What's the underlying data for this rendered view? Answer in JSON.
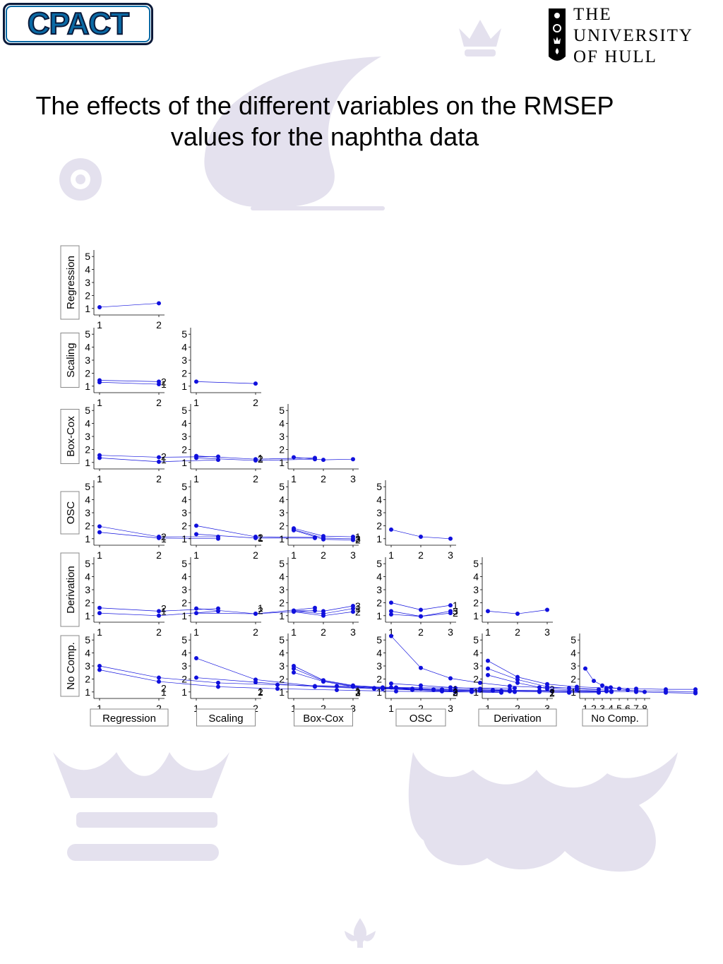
{
  "header": {
    "logo_left_text": "CPACT",
    "logo_right_lines": [
      "THE",
      "UNIVERSITY",
      "OF HULL"
    ]
  },
  "title": {
    "line1": "The effects of the different variables on the RMSEP",
    "line2": "values for the naphtha data"
  },
  "colors": {
    "series": "#1010dd",
    "watermark": "#e4e1ee",
    "logo_blue": "#0a6aa5"
  },
  "chart_data": {
    "type": "line",
    "layout": "scatterplot-matrix",
    "variables": [
      "Regression",
      "Scaling",
      "Box-Cox",
      "OSC",
      "Derivation",
      "No Comp."
    ],
    "levels": [
      2,
      2,
      3,
      3,
      3,
      8
    ],
    "ylim": [
      0.5,
      5.5
    ],
    "yticks": [
      1,
      2,
      3,
      4,
      5
    ],
    "panels": [
      {
        "row": "Regression",
        "col": "Regression",
        "x": [
          1,
          2
        ],
        "lines": [
          {
            "values": [
              1.1,
              1.4
            ]
          }
        ]
      },
      {
        "row": "Scaling",
        "col": "Regression",
        "x": [
          1,
          2
        ],
        "lines": [
          {
            "label": "2",
            "values": [
              1.45,
              1.35
            ]
          },
          {
            "label": "1",
            "values": [
              1.3,
              1.15
            ]
          }
        ]
      },
      {
        "row": "Scaling",
        "col": "Scaling",
        "x": [
          1,
          2
        ],
        "lines": [
          {
            "values": [
              1.35,
              1.2
            ]
          }
        ]
      },
      {
        "row": "Box-Cox",
        "col": "Regression",
        "x": [
          1,
          2,
          3
        ],
        "lines": [
          {
            "label": "2",
            "values": [
              1.55,
              1.4,
              1.45
            ]
          },
          {
            "label": "1",
            "values": [
              1.35,
              1.05,
              1.2
            ]
          }
        ]
      },
      {
        "row": "Box-Cox",
        "col": "Scaling",
        "x": [
          1,
          2,
          3
        ],
        "lines": [
          {
            "label": "1",
            "values": [
              1.5,
              1.25,
              1.35
            ]
          },
          {
            "label": "2",
            "values": [
              1.35,
              1.15,
              1.25
            ]
          }
        ]
      },
      {
        "row": "Box-Cox",
        "col": "Box-Cox",
        "x": [
          1,
          2,
          3
        ],
        "lines": [
          {
            "values": [
              1.4,
              1.2,
              1.25
            ]
          }
        ]
      },
      {
        "row": "OSC",
        "col": "Regression",
        "x": [
          1,
          2,
          3
        ],
        "lines": [
          {
            "label": "2",
            "values": [
              1.95,
              1.15,
              1.15
            ]
          },
          {
            "label": "1",
            "values": [
              1.5,
              1.05,
              1.0
            ]
          }
        ]
      },
      {
        "row": "OSC",
        "col": "Scaling",
        "x": [
          1,
          2,
          3
        ],
        "lines": [
          {
            "label": "2",
            "values": [
              2.0,
              1.15,
              1.1
            ]
          },
          {
            "label": "1",
            "values": [
              1.35,
              1.05,
              1.05
            ]
          }
        ]
      },
      {
        "row": "OSC",
        "col": "Box-Cox",
        "x": [
          1,
          2,
          3
        ],
        "lines": [
          {
            "label": "1",
            "values": [
              1.8,
              1.2,
              1.15
            ]
          },
          {
            "label": "3",
            "values": [
              1.7,
              1.05,
              1.0
            ]
          },
          {
            "label": "2",
            "values": [
              1.65,
              0.95,
              0.9
            ]
          }
        ]
      },
      {
        "row": "OSC",
        "col": "OSC",
        "x": [
          1,
          2,
          3
        ],
        "lines": [
          {
            "values": [
              1.7,
              1.15,
              1.0
            ]
          }
        ]
      },
      {
        "row": "Derivation",
        "col": "Regression",
        "x": [
          1,
          2,
          3
        ],
        "lines": [
          {
            "label": "2",
            "values": [
              1.6,
              1.35,
              1.55
            ]
          },
          {
            "label": "1",
            "values": [
              1.2,
              1.0,
              1.35
            ]
          }
        ]
      },
      {
        "row": "Derivation",
        "col": "Scaling",
        "x": [
          1,
          2,
          3
        ],
        "lines": [
          {
            "label": "1",
            "values": [
              1.55,
              1.15,
              1.6
            ]
          },
          {
            "label": "2",
            "values": [
              1.2,
              1.15,
              1.4
            ]
          }
        ]
      },
      {
        "row": "Derivation",
        "col": "Box-Cox",
        "x": [
          1,
          2,
          3
        ],
        "lines": [
          {
            "label": "3",
            "values": [
              1.4,
              1.35,
              1.75
            ]
          },
          {
            "label": "1",
            "values": [
              1.35,
              1.15,
              1.55
            ]
          },
          {
            "label": "2",
            "values": [
              1.3,
              1.0,
              1.3
            ]
          }
        ]
      },
      {
        "row": "Derivation",
        "col": "OSC",
        "x": [
          1,
          2,
          3
        ],
        "lines": [
          {
            "label": "1",
            "values": [
              2.0,
              1.45,
              1.8
            ]
          },
          {
            "label": "3",
            "values": [
              1.35,
              0.95,
              1.35
            ]
          },
          {
            "label": "2",
            "values": [
              1.1,
              0.95,
              1.2
            ]
          }
        ]
      },
      {
        "row": "Derivation",
        "col": "Derivation",
        "x": [
          1,
          2,
          3
        ],
        "lines": [
          {
            "values": [
              1.35,
              1.15,
              1.45
            ]
          }
        ]
      },
      {
        "row": "No Comp.",
        "col": "Regression",
        "x": [
          1,
          2,
          3,
          4,
          5,
          6,
          7,
          8
        ],
        "lines": [
          {
            "label": "2",
            "values": [
              3.0,
              2.1,
              1.7,
              1.55,
              1.45,
              1.35,
              1.3,
              1.3
            ]
          },
          {
            "label": "1",
            "values": [
              2.7,
              1.8,
              1.4,
              1.25,
              1.15,
              1.05,
              1.0,
              1.0
            ]
          }
        ]
      },
      {
        "row": "No Comp.",
        "col": "Scaling",
        "x": [
          1,
          2,
          3,
          4,
          5,
          6,
          7,
          8
        ],
        "lines": [
          {
            "label": "1",
            "values": [
              3.6,
              1.95,
              1.45,
              1.3,
              1.2,
              1.15,
              1.1,
              1.05
            ]
          },
          {
            "label": "2",
            "values": [
              2.1,
              1.75,
              1.4,
              1.25,
              1.15,
              1.1,
              1.05,
              1.0
            ]
          }
        ]
      },
      {
        "row": "No Comp.",
        "col": "Box-Cox",
        "x": [
          1,
          2,
          3,
          4,
          5,
          6,
          7,
          8
        ],
        "lines": [
          {
            "label": "1",
            "values": [
              3.0,
              1.9,
              1.5,
              1.35,
              1.25,
              1.2,
              1.15,
              1.1
            ]
          },
          {
            "label": "3",
            "values": [
              2.8,
              1.85,
              1.45,
              1.3,
              1.2,
              1.1,
              1.05,
              1.0
            ]
          },
          {
            "label": "2",
            "values": [
              2.5,
              1.8,
              1.4,
              1.25,
              1.15,
              1.05,
              1.0,
              0.95
            ]
          }
        ]
      },
      {
        "row": "No Comp.",
        "col": "OSC",
        "x": [
          1,
          2,
          3,
          4,
          5,
          6,
          7,
          8
        ],
        "lines": [
          {
            "label": "1",
            "values": [
              5.3,
              2.85,
              2.05,
              1.7,
              1.45,
              1.35,
              1.3,
              1.2
            ]
          },
          {
            "label": "3",
            "values": [
              1.65,
              1.5,
              1.35,
              1.25,
              1.15,
              1.1,
              1.05,
              1.0
            ]
          },
          {
            "label": "2",
            "values": [
              1.35,
              1.25,
              1.15,
              1.1,
              1.05,
              1.0,
              0.95,
              0.95
            ]
          }
        ]
      },
      {
        "row": "No Comp.",
        "col": "Derivation",
        "x": [
          1,
          2,
          3,
          4,
          5,
          6,
          7,
          8
        ],
        "lines": [
          {
            "label": "3",
            "values": [
              3.4,
              2.15,
              1.6,
              1.4,
              1.3,
              1.25,
              1.2,
              1.2
            ]
          },
          {
            "label": "1",
            "values": [
              2.8,
              1.95,
              1.4,
              1.25,
              1.15,
              1.1,
              1.05,
              1.0
            ]
          },
          {
            "label": "2",
            "values": [
              2.3,
              1.7,
              1.25,
              1.15,
              1.05,
              1.0,
              0.95,
              0.9
            ]
          }
        ]
      },
      {
        "row": "No Comp.",
        "col": "No Comp.",
        "x": [
          1,
          2,
          3,
          4,
          5,
          6,
          7,
          8
        ],
        "lines": [
          {
            "values": [
              2.8,
              1.85,
              1.5,
              1.35,
              1.25,
              1.15,
              1.1,
              1.0
            ]
          }
        ]
      }
    ]
  }
}
